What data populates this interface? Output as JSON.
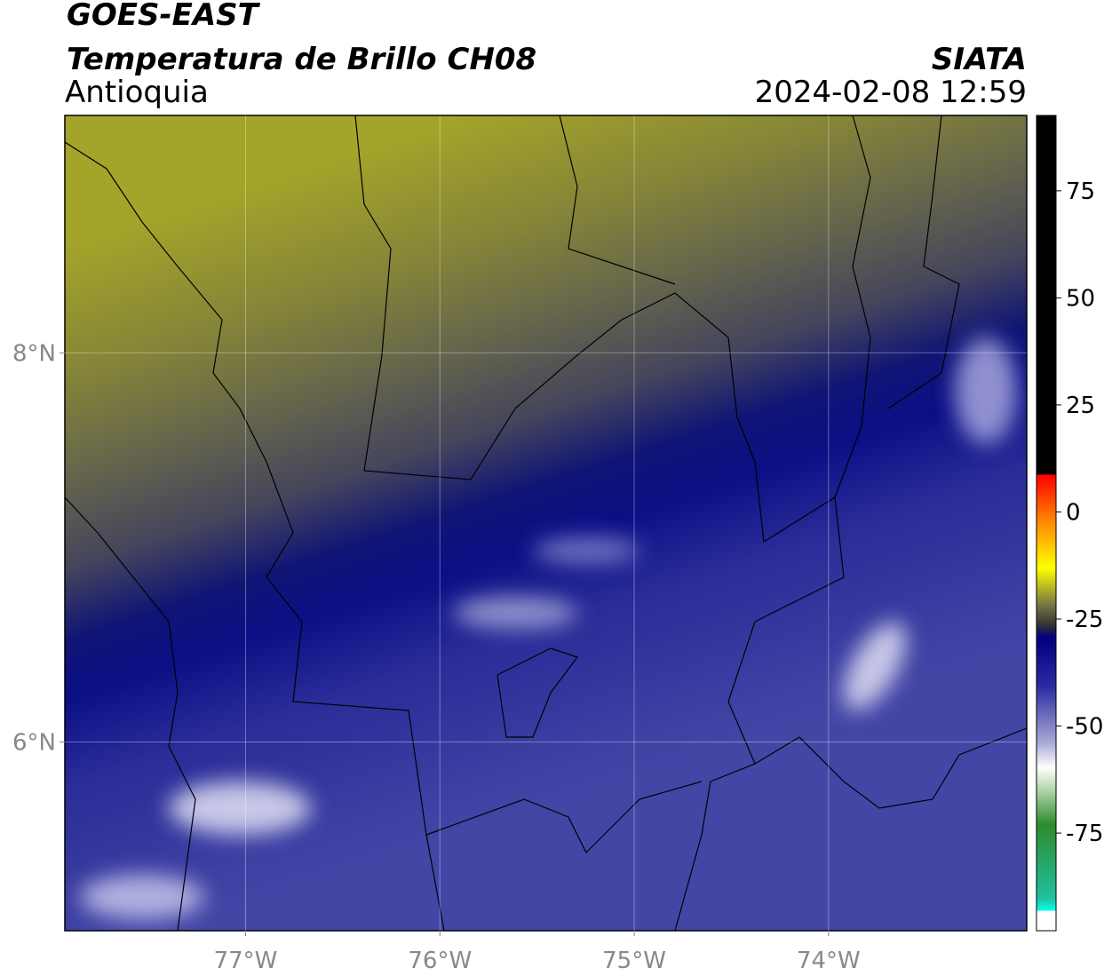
{
  "header": {
    "title": "GOES-EAST",
    "subtitle": "Temperatura de Brillo CH08",
    "region": "Antioquia",
    "source": "SIATA",
    "datetime": "2024-02-08 12:59"
  },
  "map": {
    "xlim": [
      -77.93,
      -72.98
    ],
    "ylim": [
      5.03,
      9.22
    ],
    "xticks": [
      {
        "value": -77,
        "label": "77°W"
      },
      {
        "value": -76,
        "label": "76°W"
      },
      {
        "value": -75,
        "label": "75°W"
      },
      {
        "value": -74,
        "label": "74°W"
      }
    ],
    "yticks": [
      {
        "value": 8,
        "label": "8°N"
      },
      {
        "value": 6,
        "label": "6°N"
      }
    ],
    "grid": true
  },
  "colorbar": {
    "lim": [
      -97.8,
      92.6
    ],
    "ticks": [
      75,
      50,
      25,
      0,
      -25,
      -50,
      -75
    ]
  }
}
